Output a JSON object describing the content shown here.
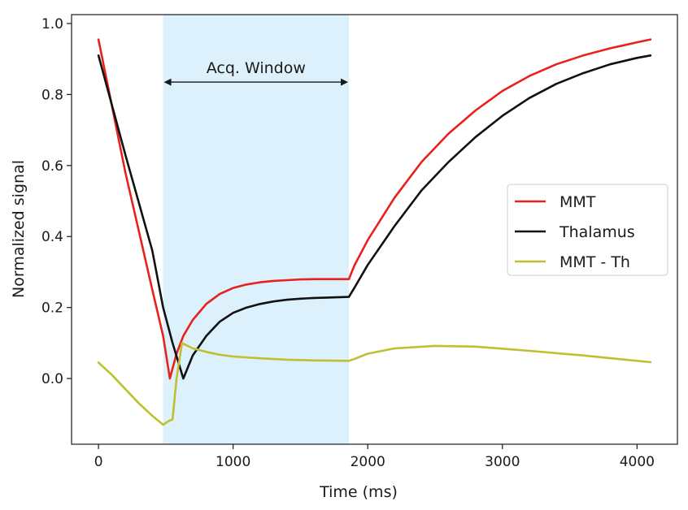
{
  "chart_data": {
    "type": "line",
    "title": "",
    "xlabel": "Time (ms)",
    "ylabel": "Normalized signal",
    "xlim": [
      -200,
      4300
    ],
    "ylim": [
      -0.185,
      1.025
    ],
    "xticks": [
      0,
      1000,
      2000,
      3000,
      4000
    ],
    "xtick_labels": [
      "0",
      "1000",
      "2000",
      "3000",
      "4000"
    ],
    "yticks": [
      0.0,
      0.2,
      0.4,
      0.6,
      0.8,
      1.0
    ],
    "ytick_labels": [
      "0.0",
      "0.2",
      "0.4",
      "0.6",
      "0.8",
      "1.0"
    ],
    "grid": false,
    "legend_position": "center-right",
    "shaded_region": {
      "x": [
        480,
        1860
      ],
      "color": "#ddf1fc"
    },
    "annotation": {
      "text": "Acq. Window",
      "x_from": 480,
      "x_to": 1860,
      "y": 0.835
    },
    "series": [
      {
        "name": "MMT",
        "color": "#e8211d",
        "x": [
          0,
          200,
          400,
          480,
          530,
          580,
          630,
          700,
          800,
          900,
          1000,
          1100,
          1200,
          1300,
          1400,
          1500,
          1600,
          1700,
          1860,
          1900,
          2000,
          2200,
          2400,
          2600,
          2800,
          3000,
          3200,
          3400,
          3600,
          3800,
          4000,
          4100
        ],
        "y": [
          0.955,
          0.58,
          0.25,
          0.12,
          0.0,
          0.07,
          0.12,
          0.165,
          0.21,
          0.238,
          0.255,
          0.265,
          0.271,
          0.275,
          0.277,
          0.279,
          0.28,
          0.28,
          0.28,
          0.318,
          0.39,
          0.51,
          0.61,
          0.69,
          0.755,
          0.81,
          0.852,
          0.885,
          0.91,
          0.93,
          0.947,
          0.955
        ]
      },
      {
        "name": "Thalamus",
        "color": "#111111",
        "x": [
          0,
          200,
          400,
          480,
          550,
          630,
          700,
          800,
          900,
          1000,
          1100,
          1200,
          1300,
          1400,
          1500,
          1600,
          1700,
          1860,
          1900,
          2000,
          2200,
          2400,
          2600,
          2800,
          3000,
          3200,
          3400,
          3600,
          3800,
          4000,
          4100
        ],
        "y": [
          0.91,
          0.63,
          0.36,
          0.2,
          0.1,
          0.0,
          0.065,
          0.12,
          0.16,
          0.185,
          0.2,
          0.21,
          0.217,
          0.222,
          0.225,
          0.227,
          0.228,
          0.23,
          0.255,
          0.32,
          0.43,
          0.53,
          0.61,
          0.68,
          0.74,
          0.79,
          0.83,
          0.86,
          0.885,
          0.903,
          0.91
        ]
      },
      {
        "name": "MMT - Th",
        "color": "#bfbf2f",
        "x": [
          0,
          100,
          200,
          300,
          400,
          480,
          520,
          550,
          580,
          620,
          700,
          800,
          900,
          1000,
          1200,
          1400,
          1600,
          1860,
          1900,
          2000,
          2200,
          2500,
          2800,
          3200,
          3600,
          4100
        ],
        "y": [
          0.045,
          0.01,
          -0.03,
          -0.07,
          -0.105,
          -0.13,
          -0.12,
          -0.115,
          0.0,
          0.1,
          0.085,
          0.075,
          0.067,
          0.062,
          0.057,
          0.053,
          0.051,
          0.05,
          0.055,
          0.07,
          0.085,
          0.092,
          0.09,
          0.078,
          0.065,
          0.046
        ]
      }
    ]
  }
}
